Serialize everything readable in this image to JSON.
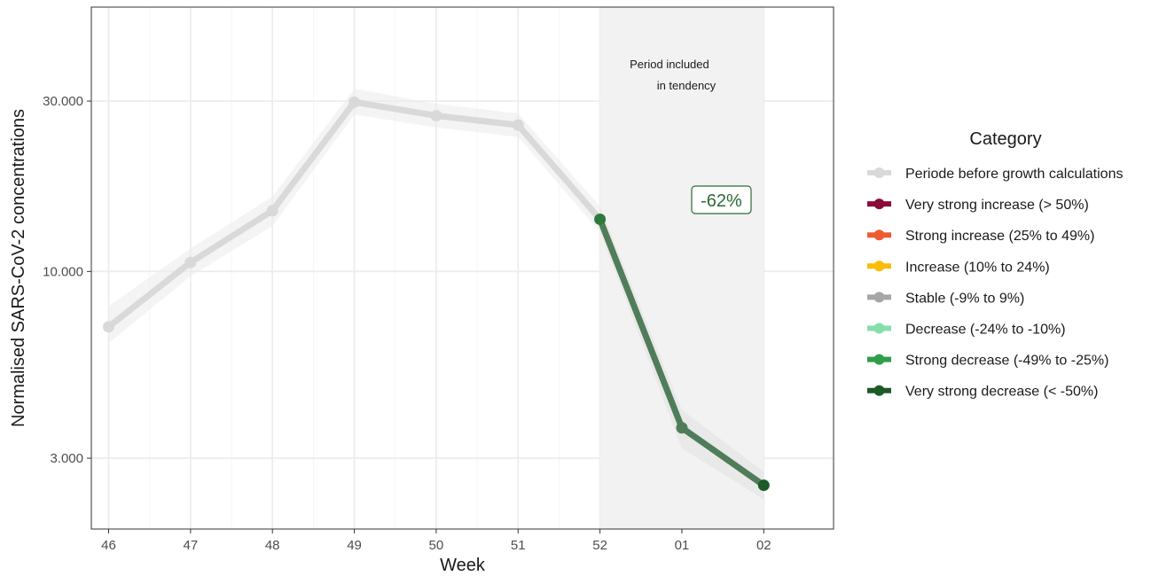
{
  "chart_data": {
    "type": "line",
    "xlabel": "Week",
    "ylabel": "Normalised SARS-CoV-2 concentrations",
    "y_scale": "log",
    "ylim": [
      1900,
      55000
    ],
    "yticks": [
      {
        "value": 3000,
        "label": "3.000"
      },
      {
        "value": 10000,
        "label": "10.000"
      },
      {
        "value": 30000,
        "label": "30.000"
      }
    ],
    "xticks": [
      "46",
      "47",
      "48",
      "49",
      "50",
      "51",
      "52",
      "01",
      "02"
    ],
    "grid": true,
    "before_color": "#d9d9d9",
    "trend_color": "#4f7d5a",
    "band_color": "#ebebeb",
    "series": [
      {
        "category": "Periode before growth calculations",
        "points": [
          {
            "x": "46",
            "y": 7000,
            "lo": 6300,
            "hi": 8000
          },
          {
            "x": "47",
            "y": 10600,
            "lo": 9700,
            "hi": 11600
          },
          {
            "x": "48",
            "y": 14800,
            "lo": 13400,
            "hi": 16200
          },
          {
            "x": "49",
            "y": 29800,
            "lo": 27500,
            "hi": 32500
          },
          {
            "x": "50",
            "y": 27300,
            "lo": 25300,
            "hi": 29500
          },
          {
            "x": "51",
            "y": 25700,
            "lo": 23800,
            "hi": 27700
          },
          {
            "x": "52",
            "y": 14000,
            "lo": 12900,
            "hi": 15200
          }
        ]
      },
      {
        "category": "Very strong decrease (< -50%)",
        "points": [
          {
            "x": "52",
            "y": 14000
          },
          {
            "x": "01",
            "y": 3650
          },
          {
            "x": "02",
            "y": 2520
          }
        ],
        "band": [
          {
            "x": "01",
            "lo": 3200,
            "hi": 4100
          },
          {
            "x": "02",
            "lo": 2300,
            "hi": 2750
          }
        ]
      }
    ],
    "annotations": {
      "period_label_line1": "Period included",
      "period_label_line2": "in tendency",
      "period_from": "52",
      "period_to": "02",
      "tendency": "-62%"
    },
    "legend": {
      "title": "Category",
      "position": "right",
      "items": [
        {
          "label": "Periode before growth calculations",
          "color": "#d9d9d9"
        },
        {
          "label": "Very strong increase (> 50%)",
          "color": "#8b0a3a"
        },
        {
          "label": "Strong increase (25% to 49%)",
          "color": "#f05a32"
        },
        {
          "label": "Increase (10% to 24%)",
          "color": "#fbbc05"
        },
        {
          "label": "Stable (-9% to 9%)",
          "color": "#a6a6a6"
        },
        {
          "label": "Decrease (-24% to -10%)",
          "color": "#84dfab"
        },
        {
          "label": "Strong decrease (-49% to -25%)",
          "color": "#2f9e49"
        },
        {
          "label": "Very strong decrease (< -50%)",
          "color": "#1c5a28"
        }
      ]
    }
  }
}
